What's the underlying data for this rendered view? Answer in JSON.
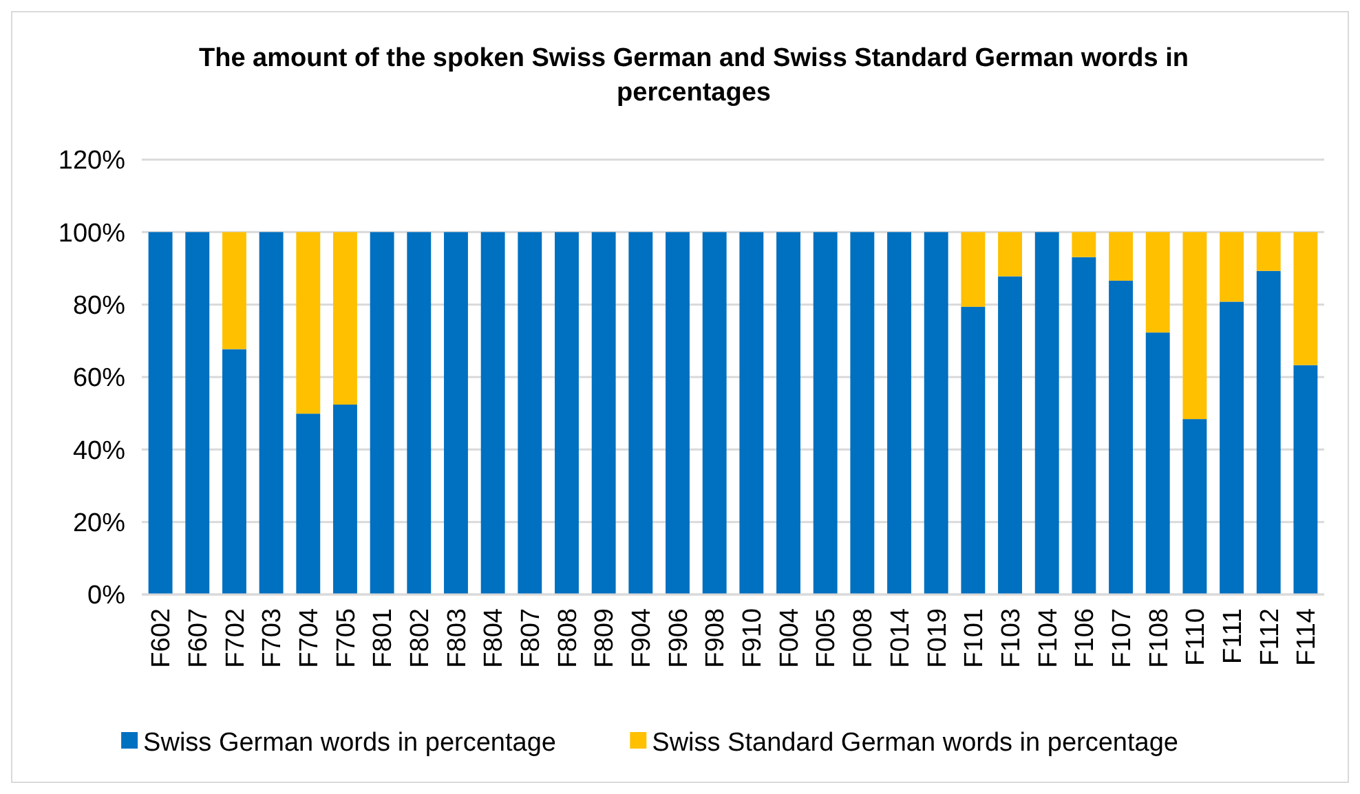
{
  "chart_data": {
    "type": "bar",
    "title": "The amount of the spoken Swiss German and Swiss Standard German words in percentages",
    "stacked": true,
    "categories": [
      "F602",
      "F607",
      "F702",
      "F703",
      "F704",
      "F705",
      "F801",
      "F802",
      "F803",
      "F804",
      "F807",
      "F808",
      "F809",
      "F904",
      "F906",
      "F908",
      "F910",
      "F004",
      "F005",
      "F008",
      "F014",
      "F019",
      "F101",
      "F103",
      "F104",
      "F106",
      "F107",
      "F108",
      "F110",
      "F111",
      "F112",
      "F114"
    ],
    "series": [
      {
        "name": "Swiss German words in percentage",
        "color": "#0070c0",
        "values": [
          100,
          100,
          67.7,
          100,
          49.9,
          52.4,
          100,
          100,
          100,
          100,
          100,
          100,
          100,
          100,
          100,
          100,
          100,
          100,
          100,
          100,
          100,
          100,
          79.4,
          87.8,
          100,
          93.1,
          86.6,
          72.3,
          48.4,
          80.8,
          89.3,
          63.3
        ]
      },
      {
        "name": "Swiss Standard German words in percentage",
        "color": "#ffc000",
        "values": [
          0,
          0,
          32.3,
          0,
          50.1,
          47.6,
          0,
          0,
          0,
          0,
          0,
          0,
          0,
          0,
          0,
          0,
          0,
          0,
          0,
          0,
          0,
          0,
          20.6,
          12.2,
          0,
          6.9,
          13.4,
          27.7,
          51.6,
          19.2,
          10.7,
          36.7
        ]
      }
    ],
    "ylim": [
      0,
      120
    ],
    "yticks": [
      {
        "value": 0,
        "label": "0%"
      },
      {
        "value": 20,
        "label": "20%"
      },
      {
        "value": 40,
        "label": "40%"
      },
      {
        "value": 60,
        "label": "60%"
      },
      {
        "value": 80,
        "label": "80%"
      },
      {
        "value": 100,
        "label": "100%"
      },
      {
        "value": 120,
        "label": "120%"
      }
    ],
    "grid": "y",
    "legend": "bottom"
  }
}
